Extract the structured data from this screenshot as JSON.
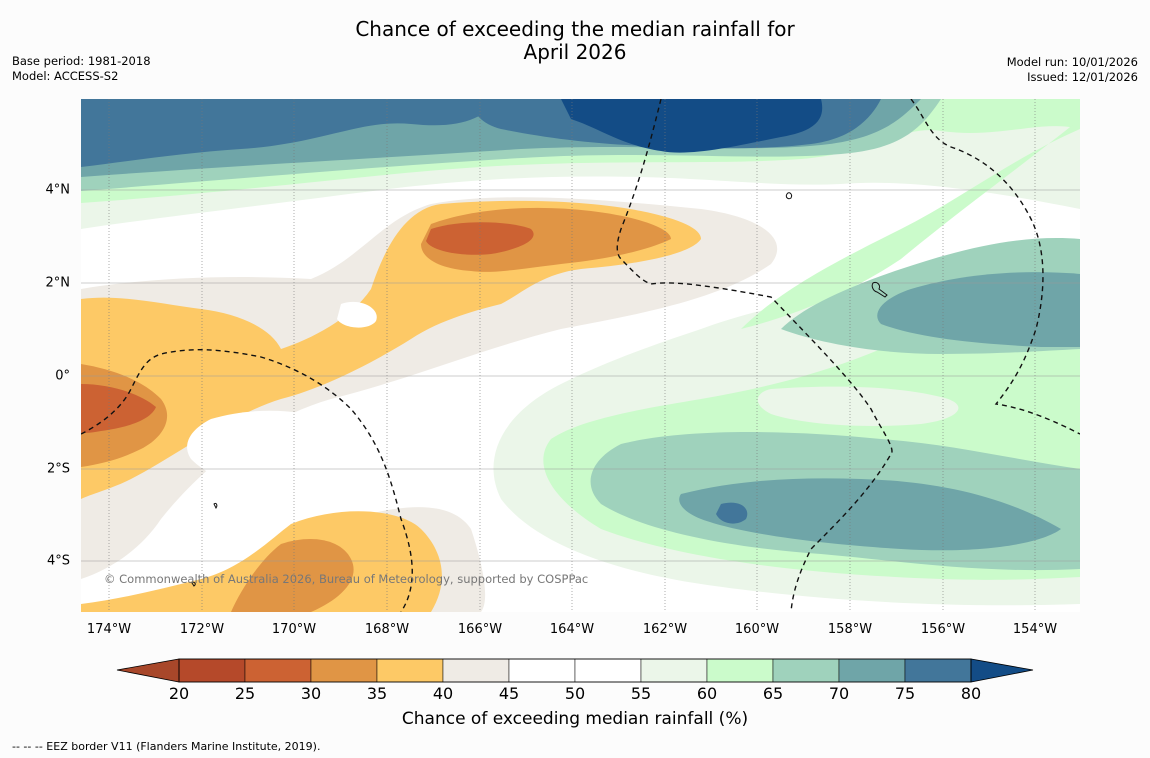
{
  "header": {
    "title_line1": "Chance of exceeding the median rainfall for",
    "title_line2": "April 2026",
    "base_period": "Base period: 1981-2018",
    "model": "Model: ACCESS-S2",
    "model_run": "Model run: 10/01/2026",
    "issued": "Issued: 12/01/2026"
  },
  "map": {
    "copyright": "© Commonwealth of Australia 2026, Bureau of Meteorology, supported by COSPPac",
    "lon_labels": [
      "174°W",
      "172°W",
      "170°W",
      "168°W",
      "166°W",
      "164°W",
      "162°W",
      "160°W",
      "158°W",
      "156°W",
      "154°W"
    ],
    "lat_labels": [
      "4°N",
      "2°N",
      "0°",
      "2°S",
      "4°S"
    ]
  },
  "colorbar": {
    "title": "Chance of exceeding median rainfall (%)",
    "ticks": [
      "20",
      "25",
      "30",
      "35",
      "40",
      "45",
      "50",
      "55",
      "60",
      "65",
      "70",
      "75",
      "80"
    ],
    "colors": {
      "under": "#a8472a",
      "b20_25": "#b5492a",
      "b25_30": "#cc6233",
      "b30_35": "#e09545",
      "b35_40": "#fdc966",
      "b40_45": "#efebe5",
      "b45_50": "#ffffff",
      "b50_55": "#ffffff",
      "b55_60": "#ebf6e9",
      "b60_65": "#cbfbcb",
      "b65_70": "#9fd2bc",
      "b70_75": "#6fa5a8",
      "b75_80": "#42769a",
      "over": "#134c86"
    }
  },
  "footnote": "--  --  -- EEZ border V11 (Flanders Marine Institute, 2019)."
}
